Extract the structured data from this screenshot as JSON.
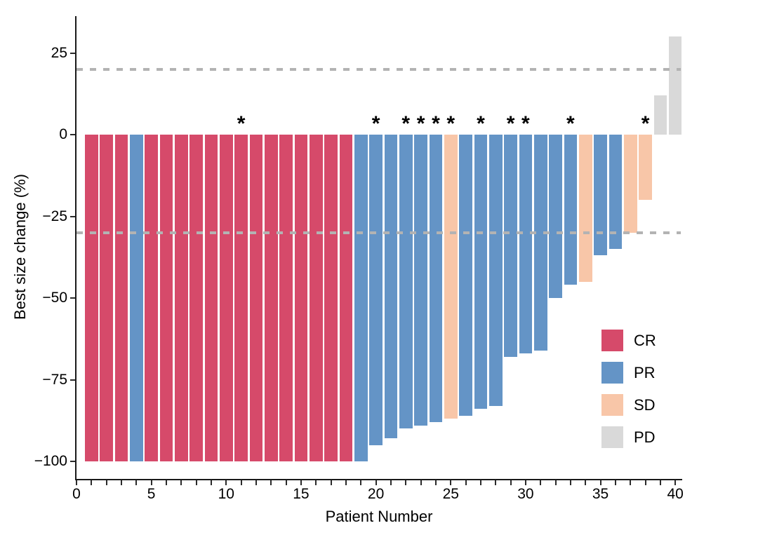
{
  "chart_data": {
    "type": "bar",
    "title": "",
    "xlabel": "Patient Number",
    "ylabel": "Best size change (%)",
    "x_tick_values": [
      0,
      5,
      10,
      15,
      20,
      25,
      30,
      35,
      40
    ],
    "x_tick_labels": [
      "0",
      "5",
      "10",
      "15",
      "20",
      "25",
      "30",
      "35",
      "40"
    ],
    "x_minor_tick_step": 1,
    "y_tick_values": [
      25,
      0,
      -25,
      -50,
      -75,
      -100
    ],
    "y_tick_labels": [
      "25",
      "0",
      "−25",
      "−50",
      "−75",
      "−100"
    ],
    "xlim": [
      0,
      40.5
    ],
    "ylim": [
      -105,
      36
    ],
    "grid": "off",
    "legend_position": "inside-right",
    "reference_lines": [
      {
        "y": 20,
        "style": "dashed",
        "color": "#B3B3B3"
      },
      {
        "y": -30,
        "style": "dashed",
        "color": "#B3B3B3"
      }
    ],
    "categories": [
      1,
      2,
      3,
      4,
      5,
      6,
      7,
      8,
      9,
      10,
      11,
      12,
      13,
      14,
      15,
      16,
      17,
      18,
      19,
      20,
      21,
      22,
      23,
      24,
      25,
      26,
      27,
      28,
      29,
      30,
      31,
      32,
      33,
      34,
      35,
      36,
      37,
      38,
      39,
      40
    ],
    "values": [
      -100,
      -100,
      -100,
      -100,
      -100,
      -100,
      -100,
      -100,
      -100,
      -100,
      -100,
      -100,
      -100,
      -100,
      -100,
      -100,
      -100,
      -100,
      -100,
      -95,
      -93,
      -90,
      -89,
      -88,
      -87,
      -86,
      -84,
      -83,
      -68,
      -67,
      -66,
      -50,
      -46,
      -45,
      -37,
      -35,
      -30,
      -20,
      12,
      30
    ],
    "responses": [
      "CR",
      "CR",
      "CR",
      "PR",
      "CR",
      "CR",
      "CR",
      "CR",
      "CR",
      "CR",
      "CR",
      "CR",
      "CR",
      "CR",
      "CR",
      "CR",
      "CR",
      "CR",
      "PR",
      "PR",
      "PR",
      "PR",
      "PR",
      "PR",
      "SD",
      "PR",
      "PR",
      "PR",
      "PR",
      "PR",
      "PR",
      "PR",
      "PR",
      "SD",
      "PR",
      "PR",
      "SD",
      "SD",
      "PD",
      "PD"
    ],
    "asterisk_patients": [
      11,
      20,
      22,
      23,
      24,
      25,
      27,
      29,
      30,
      33,
      38
    ],
    "asterisk_symbol": "*",
    "bars": [
      {
        "patient": 1,
        "value": -100,
        "response": "CR",
        "asterisk": false
      },
      {
        "patient": 2,
        "value": -100,
        "response": "CR",
        "asterisk": false
      },
      {
        "patient": 3,
        "value": -100,
        "response": "CR",
        "asterisk": false
      },
      {
        "patient": 4,
        "value": -100,
        "response": "PR",
        "asterisk": false
      },
      {
        "patient": 5,
        "value": -100,
        "response": "CR",
        "asterisk": false
      },
      {
        "patient": 6,
        "value": -100,
        "response": "CR",
        "asterisk": false
      },
      {
        "patient": 7,
        "value": -100,
        "response": "CR",
        "asterisk": false
      },
      {
        "patient": 8,
        "value": -100,
        "response": "CR",
        "asterisk": false
      },
      {
        "patient": 9,
        "value": -100,
        "response": "CR",
        "asterisk": false
      },
      {
        "patient": 10,
        "value": -100,
        "response": "CR",
        "asterisk": false
      },
      {
        "patient": 11,
        "value": -100,
        "response": "CR",
        "asterisk": true
      },
      {
        "patient": 12,
        "value": -100,
        "response": "CR",
        "asterisk": false
      },
      {
        "patient": 13,
        "value": -100,
        "response": "CR",
        "asterisk": false
      },
      {
        "patient": 14,
        "value": -100,
        "response": "CR",
        "asterisk": false
      },
      {
        "patient": 15,
        "value": -100,
        "response": "CR",
        "asterisk": false
      },
      {
        "patient": 16,
        "value": -100,
        "response": "CR",
        "asterisk": false
      },
      {
        "patient": 17,
        "value": -100,
        "response": "CR",
        "asterisk": false
      },
      {
        "patient": 18,
        "value": -100,
        "response": "CR",
        "asterisk": false
      },
      {
        "patient": 19,
        "value": -100,
        "response": "PR",
        "asterisk": false
      },
      {
        "patient": 20,
        "value": -95,
        "response": "PR",
        "asterisk": true
      },
      {
        "patient": 21,
        "value": -93,
        "response": "PR",
        "asterisk": false
      },
      {
        "patient": 22,
        "value": -90,
        "response": "PR",
        "asterisk": true
      },
      {
        "patient": 23,
        "value": -89,
        "response": "PR",
        "asterisk": true
      },
      {
        "patient": 24,
        "value": -88,
        "response": "PR",
        "asterisk": true
      },
      {
        "patient": 25,
        "value": -87,
        "response": "SD",
        "asterisk": true
      },
      {
        "patient": 26,
        "value": -86,
        "response": "PR",
        "asterisk": false
      },
      {
        "patient": 27,
        "value": -84,
        "response": "PR",
        "asterisk": true
      },
      {
        "patient": 28,
        "value": -83,
        "response": "PR",
        "asterisk": false
      },
      {
        "patient": 29,
        "value": -68,
        "response": "PR",
        "asterisk": true
      },
      {
        "patient": 30,
        "value": -67,
        "response": "PR",
        "asterisk": true
      },
      {
        "patient": 31,
        "value": -66,
        "response": "PR",
        "asterisk": false
      },
      {
        "patient": 32,
        "value": -50,
        "response": "PR",
        "asterisk": false
      },
      {
        "patient": 33,
        "value": -46,
        "response": "PR",
        "asterisk": true
      },
      {
        "patient": 34,
        "value": -45,
        "response": "SD",
        "asterisk": false
      },
      {
        "patient": 35,
        "value": -37,
        "response": "PR",
        "asterisk": false
      },
      {
        "patient": 36,
        "value": -35,
        "response": "PR",
        "asterisk": false
      },
      {
        "patient": 37,
        "value": -30,
        "response": "SD",
        "asterisk": false
      },
      {
        "patient": 38,
        "value": -20,
        "response": "SD",
        "asterisk": true
      },
      {
        "patient": 39,
        "value": 12,
        "response": "PD",
        "asterisk": false
      },
      {
        "patient": 40,
        "value": 30,
        "response": "PD",
        "asterisk": false
      }
    ],
    "legend": [
      {
        "label": "CR",
        "color": "#D64A6A"
      },
      {
        "label": "PR",
        "color": "#6494C6"
      },
      {
        "label": "SD",
        "color": "#F8C6A8"
      },
      {
        "label": "PD",
        "color": "#D9D9D9"
      }
    ]
  },
  "colors": {
    "CR": "#D64A6A",
    "PR": "#6494C6",
    "SD": "#F8C6A8",
    "PD": "#D9D9D9",
    "reference_line": "#B3B3B3",
    "axis": "#1A1A1A",
    "background": "#FFFFFF",
    "text": "#000000"
  }
}
